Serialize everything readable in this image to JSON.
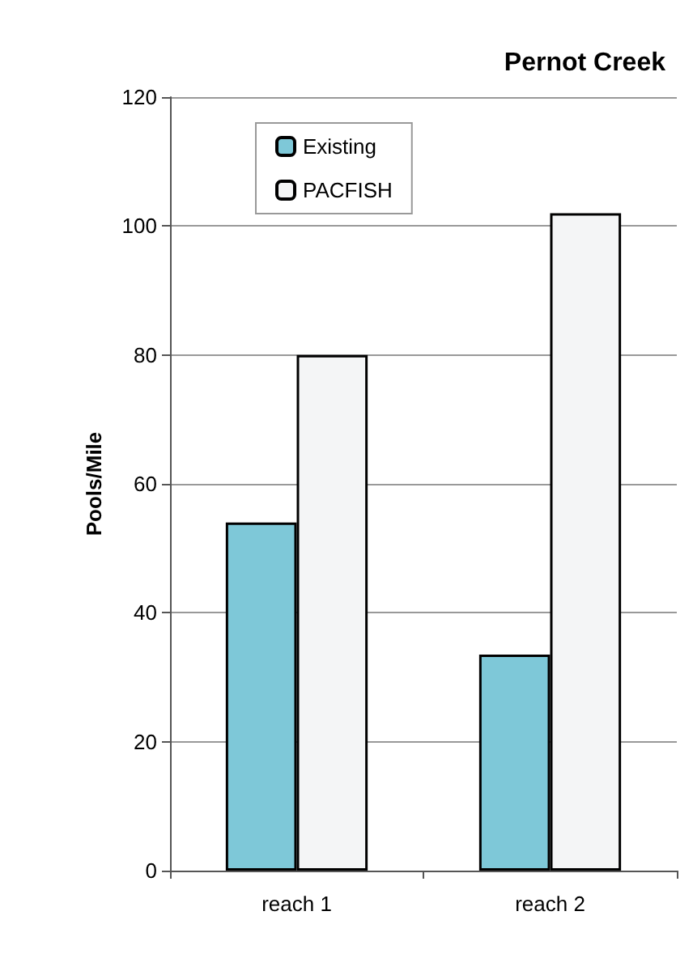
{
  "chart_data": {
    "type": "bar",
    "title": "Pernot Creek",
    "ylabel": "Pools/Mile",
    "categories": [
      "reach 1",
      "reach 2"
    ],
    "series": [
      {
        "name": "Existing",
        "color": "#7ec8d8",
        "values": [
          54,
          33.5
        ]
      },
      {
        "name": "PACFISH",
        "color": "#f4f5f6",
        "values": [
          80,
          102
        ]
      }
    ],
    "ylim": [
      0,
      120
    ],
    "yticks": [
      0,
      20,
      40,
      60,
      80,
      100,
      120
    ],
    "grid": "y",
    "legend": "top left"
  }
}
